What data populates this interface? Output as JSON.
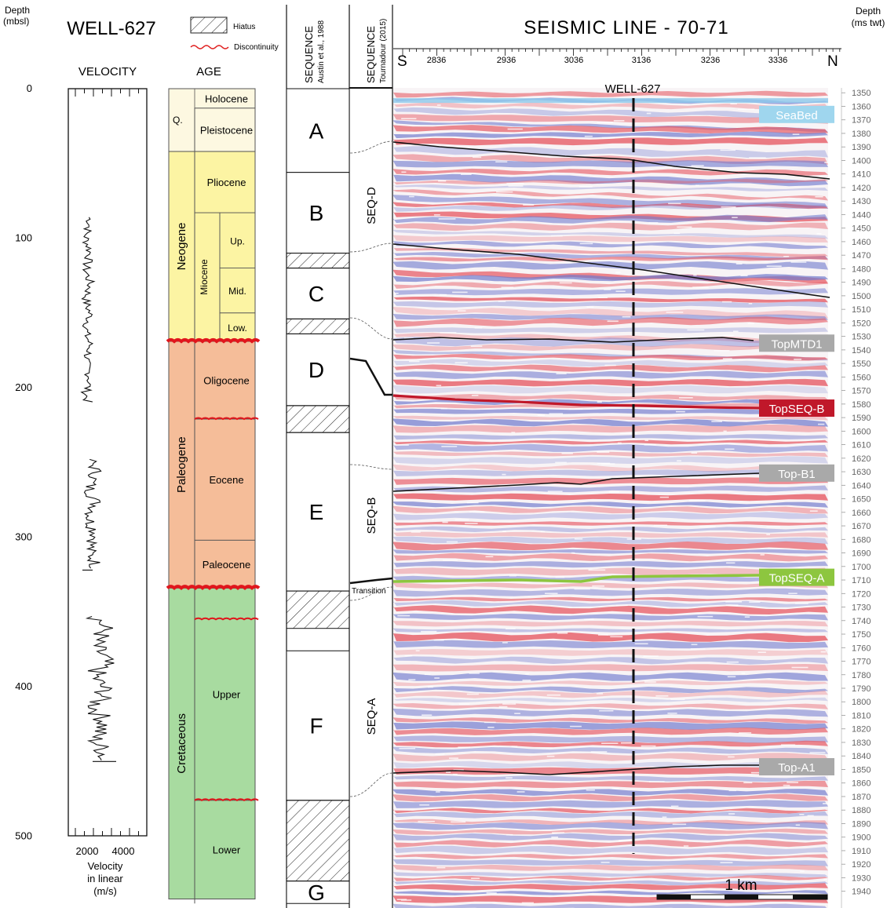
{
  "depth_axis": {
    "title_line1": "Depth",
    "title_line2": "(mbsl)",
    "ticks": [
      "0",
      "100",
      "200",
      "300",
      "400",
      "500"
    ],
    "tick_values": [
      0,
      100,
      200,
      300,
      400,
      500
    ]
  },
  "well": {
    "title": "WELL-627",
    "velocity_title": "VELOCITY",
    "velocity_ticks": [
      "2000",
      "4000"
    ],
    "velocity_label_line1": "Velocity",
    "velocity_label_line2": "in linear",
    "velocity_label_line3": "(m/s)"
  },
  "legend": {
    "hiatus": "Hiatus",
    "discontinuity": "Discontinuity"
  },
  "age": {
    "title": "AGE",
    "eras": [
      {
        "label": "Q.",
        "top": 0,
        "bottom": 42,
        "color": "#fdf8e1"
      },
      {
        "label": "Neogene",
        "top": 42,
        "bottom": 169,
        "color": "#fcf4a3"
      },
      {
        "label": "Paleogene",
        "top": 169,
        "bottom": 334,
        "color": "#f5bd99"
      },
      {
        "label": "Cretaceous",
        "top": 334,
        "bottom": 542,
        "color": "#a8dba0"
      }
    ],
    "epochs": [
      {
        "label": "Holocene",
        "top": 0,
        "bottom": 13
      },
      {
        "label": "Pleistocene",
        "top": 13,
        "bottom": 42
      },
      {
        "label": "Pliocene",
        "top": 42,
        "bottom": 83
      },
      {
        "label": "Oligocene",
        "top": 169,
        "bottom": 221
      },
      {
        "label": "Eocene",
        "top": 221,
        "bottom": 302
      },
      {
        "label": "Paleocene",
        "top": 302,
        "bottom": 334
      },
      {
        "label": "Upper",
        "top": 334,
        "bottom": 476
      },
      {
        "label": "Lower",
        "top": 476,
        "bottom": 542
      }
    ],
    "miocene": {
      "label": "Miocene",
      "top": 83,
      "bottom": 169
    },
    "miocene_subs": [
      {
        "label": "Up.",
        "top": 83,
        "bottom": 120
      },
      {
        "label": "Mid.",
        "top": 120,
        "bottom": 150
      },
      {
        "label": "Low.",
        "top": 150,
        "bottom": 169
      }
    ],
    "major_unconformities": [
      169,
      334
    ],
    "minor_discontinuities": [
      221,
      355,
      476
    ]
  },
  "sequence_austin": {
    "title": "SEQUENCE",
    "subtitle": "Austin et al., 1988",
    "units": [
      {
        "label": "A",
        "top": 0,
        "bottom": 56
      },
      {
        "label": "B",
        "top": 56,
        "bottom": 110
      },
      {
        "label": "C",
        "top": 120,
        "bottom": 154
      },
      {
        "label": "D",
        "top": 164,
        "bottom": 212
      },
      {
        "label": "E",
        "top": 230,
        "bottom": 336
      },
      {
        "label": "F",
        "top": 376,
        "bottom": 476
      },
      {
        "label": "G",
        "top": 530,
        "bottom": 545
      }
    ],
    "hiatuses": [
      [
        110,
        120
      ],
      [
        154,
        164
      ],
      [
        212,
        230
      ],
      [
        336,
        361
      ],
      [
        476,
        530
      ]
    ]
  },
  "sequence_tournadour": {
    "title": "SEQUENCE",
    "subtitle": "Tournadour (2015)",
    "units": [
      {
        "label": "SEQ-D",
        "top": 0,
        "bottom": 200
      },
      {
        "label": "SEQ-B",
        "top": 200,
        "bottom": 324
      },
      {
        "label": "SEQ-A",
        "top": 334,
        "bottom": 545
      }
    ],
    "transition": "Transition"
  },
  "seismic": {
    "title": "SEISMIC LINE - 70-71",
    "south": "S",
    "north": "N",
    "cdp_labels": [
      "2836",
      "2936",
      "3036",
      "3136",
      "3236",
      "3336"
    ],
    "well_label": "WELL-627",
    "scale_label": "1 km",
    "twt_axis_title_line1": "Depth",
    "twt_axis_title_line2": "(ms twt)",
    "twt_ticks": [
      "1350",
      "1360",
      "1370",
      "1380",
      "1390",
      "1400",
      "1410",
      "1420",
      "1430",
      "1440",
      "1450",
      "1460",
      "1470",
      "1480",
      "1490",
      "1500",
      "1510",
      "1520",
      "1530",
      "1540",
      "1550",
      "1560",
      "1570",
      "1580",
      "1590",
      "1600",
      "1610",
      "1620",
      "1630",
      "1640",
      "1650",
      "1660",
      "1670",
      "1680",
      "1690",
      "1700",
      "1710",
      "1720",
      "1730",
      "1740",
      "1750",
      "1760",
      "1770",
      "1780",
      "1790",
      "1800",
      "1810",
      "1820",
      "1830",
      "1840",
      "1850",
      "1860",
      "1870",
      "1880",
      "1890",
      "1900",
      "1910",
      "1920",
      "1930",
      "1940"
    ],
    "horizons": [
      {
        "label": "SeaBed",
        "twt": 1366,
        "color": "#9fd6ee",
        "text_color": "#ffffff"
      },
      {
        "label": "TopMTD1",
        "twt": 1535,
        "color": "#a9a9a9",
        "text_color": "#ffffff"
      },
      {
        "label": "TopSEQ-B",
        "twt": 1583,
        "color": "#c0182a",
        "text_color": "#ffffff"
      },
      {
        "label": "Top-B1",
        "twt": 1631,
        "color": "#a9a9a9",
        "text_color": "#ffffff"
      },
      {
        "label": "TopSEQ-A",
        "twt": 1708,
        "color": "#8dc63f",
        "text_color": "#ffffff"
      },
      {
        "label": "Top-A1",
        "twt": 1848,
        "color": "#a9a9a9",
        "text_color": "#ffffff"
      }
    ]
  }
}
